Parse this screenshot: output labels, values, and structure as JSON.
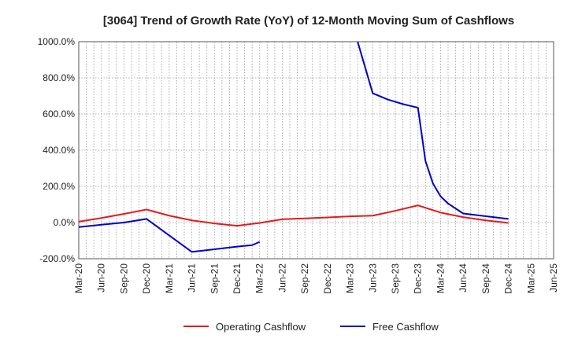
{
  "chart_data": {
    "type": "line",
    "title": "[3064]  Trend of Growth Rate (YoY) of 12-Month Moving Sum of Cashflows",
    "xlabel": "",
    "ylabel": "",
    "ylim": [
      -200,
      1000
    ],
    "y_ticks": [
      1000,
      800,
      600,
      400,
      200,
      0,
      -200
    ],
    "y_tick_labels": [
      "1000.0%",
      "800.0%",
      "600.0%",
      "400.0%",
      "200.0%",
      "0.0%",
      "-200.0%"
    ],
    "x_tick_labels": [
      "Mar-20",
      "Jun-20",
      "Sep-20",
      "Dec-20",
      "Mar-21",
      "Jun-21",
      "Sep-21",
      "Dec-21",
      "Mar-22",
      "Jun-22",
      "Sep-22",
      "Dec-22",
      "Mar-23",
      "Jun-23",
      "Sep-23",
      "Dec-23",
      "Mar-24",
      "Jun-24",
      "Sep-24",
      "Dec-24",
      "Mar-25",
      "Jun-25"
    ],
    "grid": true,
    "legend_position": "bottom-center",
    "series": [
      {
        "name": "Operating Cashflow",
        "color": "#e31a1c",
        "points": [
          [
            "Mar-20",
            5
          ],
          [
            "Jun-20",
            25
          ],
          [
            "Sep-20",
            48
          ],
          [
            "Dec-20",
            72
          ],
          [
            "Mar-21",
            38
          ],
          [
            "Jun-21",
            12
          ],
          [
            "Sep-21",
            -5
          ],
          [
            "Dec-21",
            -18
          ],
          [
            "Mar-22",
            -2
          ],
          [
            "Jun-22",
            18
          ],
          [
            "Sep-22",
            23
          ],
          [
            "Dec-22",
            28
          ],
          [
            "Mar-23",
            34
          ],
          [
            "Jun-23",
            38
          ],
          [
            "Sep-23",
            65
          ],
          [
            "Dec-23",
            95
          ],
          [
            "Mar-24",
            55
          ],
          [
            "Jun-24",
            30
          ],
          [
            "Sep-24",
            12
          ],
          [
            "Dec-24",
            -2
          ]
        ]
      },
      {
        "name": "Free Cashflow",
        "color": "#0000cc",
        "points": [
          [
            "Mar-20",
            -25
          ],
          [
            "Jun-20",
            -12
          ],
          [
            "Sep-20",
            0
          ],
          [
            "Dec-20",
            20
          ],
          [
            "Jun-21",
            -162
          ],
          [
            "Sep-21",
            -148
          ],
          [
            "Dec-21",
            -133
          ],
          [
            "Feb-22",
            -125
          ],
          [
            "Mar-22",
            -107
          ],
          [
            "Apr-23",
            1000
          ],
          [
            "Jun-23",
            715
          ],
          [
            "Aug-23",
            680
          ],
          [
            "Oct-23",
            655
          ],
          [
            "Dec-23",
            635
          ],
          [
            "Jan-24",
            340
          ],
          [
            "Feb-24",
            215
          ],
          [
            "Mar-24",
            145
          ],
          [
            "Apr-24",
            105
          ],
          [
            "Jun-24",
            50
          ],
          [
            "Dec-24",
            20
          ]
        ]
      }
    ]
  }
}
